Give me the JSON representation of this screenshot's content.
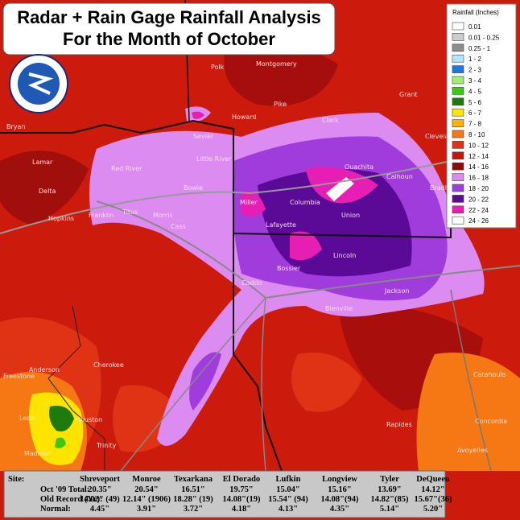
{
  "title": {
    "line1": "Radar + Rain Gage Rainfall Analysis",
    "line2": "For the Month of October"
  },
  "legend": {
    "title": "Rainfall (Inches)",
    "entries": [
      {
        "label": "0.01",
        "color": "#ffffff"
      },
      {
        "label": "0.01 - 0.25",
        "color": "#cccccc"
      },
      {
        "label": "0.25 - 1",
        "color": "#8c8c8c"
      },
      {
        "label": "1 - 2",
        "color": "#b4e4ff"
      },
      {
        "label": "2 - 3",
        "color": "#1e78e0"
      },
      {
        "label": "3 - 4",
        "color": "#a0f070"
      },
      {
        "label": "4 - 5",
        "color": "#3cc814"
      },
      {
        "label": "5 - 6",
        "color": "#1e7a0a"
      },
      {
        "label": "6 - 7",
        "color": "#ffe400"
      },
      {
        "label": "7 - 8",
        "color": "#ffb000"
      },
      {
        "label": "8 - 10",
        "color": "#f57814"
      },
      {
        "label": "10 - 12",
        "color": "#e03214"
      },
      {
        "label": "12 - 14",
        "color": "#c8140a"
      },
      {
        "label": "14 - 16",
        "color": "#8c0a0a"
      },
      {
        "label": "16 - 18",
        "color": "#dc8cf0"
      },
      {
        "label": "18 - 20",
        "color": "#a03cdc"
      },
      {
        "label": "20 - 22",
        "color": "#5a0a96"
      },
      {
        "label": "22 - 24",
        "color": "#e61eb4"
      },
      {
        "label": "24 - 26",
        "color": "#ffffff"
      }
    ]
  },
  "table": {
    "header": [
      "Site:",
      "Shreveport",
      "Monroe",
      "Texarkana",
      "El Dorado",
      "Lufkin",
      "Longview",
      "Tyler",
      "DeQueen"
    ],
    "rows": [
      [
        "Oct '09 Total:",
        "20.35\"",
        "20.54\"",
        "16.51\"",
        "19.75\"",
        "15.04\"",
        "15.16\"",
        "13.69\"",
        "14.12\""
      ],
      [
        "Old Record (Yr):",
        "14.02\" (49)",
        "12.14\" (1906)",
        "18.28\" (19)",
        "14.08\"(19)",
        "15.54\" (94)",
        "14.08\"(94)",
        "14.82\"(85)",
        "15.67\"(36)"
      ],
      [
        "Normal:",
        "4.45\"",
        "3.91\"",
        "3.72\"",
        "4.18\"",
        "4.13\"",
        "4.35\"",
        "5.14\"",
        "5.20\""
      ]
    ]
  },
  "labels": [
    "Polk",
    "Montgomery",
    "Pike",
    "Howard",
    "Grant",
    "Clark",
    "Cleveland",
    "Bryan",
    "Lamar",
    "Red River",
    "Sevier",
    "Little River",
    "Delta",
    "Hopkins",
    "Franklin",
    "Titus",
    "Morris",
    "Cass",
    "Bowie",
    "Miller",
    "Lafayette",
    "Columbia",
    "Union",
    "Ouachita",
    "Calhoun",
    "Bradley",
    "Caddo",
    "Bossier",
    "Lincoln",
    "Jackson",
    "Bienville",
    "Anderson",
    "Cherokee",
    "Freestone",
    "Leon",
    "Houston",
    "Trinity",
    "Madison",
    "Catahoula",
    "Concordia",
    "Avoyelles",
    "Rapides"
  ]
}
